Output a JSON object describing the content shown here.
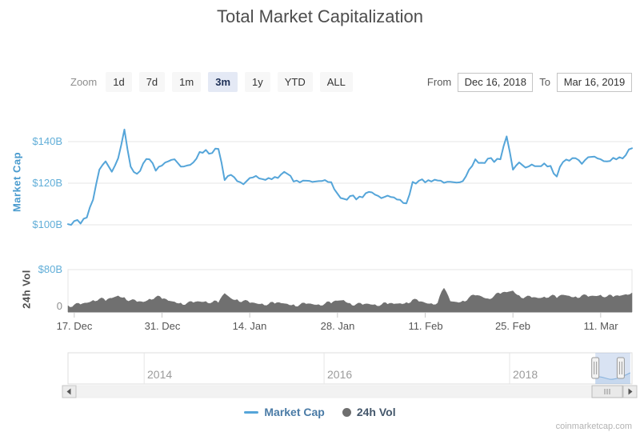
{
  "title": "Total Market Capitalization",
  "watermark": "coinmarketcap.com",
  "toolbar": {
    "zoom_label": "Zoom",
    "buttons": [
      {
        "label": "1d",
        "selected": false
      },
      {
        "label": "7d",
        "selected": false
      },
      {
        "label": "1m",
        "selected": false
      },
      {
        "label": "3m",
        "selected": true
      },
      {
        "label": "1y",
        "selected": false
      },
      {
        "label": "YTD",
        "selected": false
      },
      {
        "label": "ALL",
        "selected": false
      }
    ],
    "from_label": "From",
    "from_value": "Dec 16, 2018",
    "to_label": "To",
    "to_value": "Mar 16, 2019"
  },
  "legend": {
    "items": [
      {
        "label": "Market Cap",
        "marker": "line",
        "color": "#55a5d9"
      },
      {
        "label": "24h Vol",
        "marker": "circle",
        "color": "#6e6e6e"
      }
    ]
  },
  "chart_data": {
    "type": "line",
    "title": "Total Market Capitalization",
    "x_range": [
      "Dec 16, 2018",
      "Mar 16, 2019"
    ],
    "x_unit": "days",
    "x_tick_labels": [
      "17. Dec",
      "31. Dec",
      "14. Jan",
      "28. Jan",
      "11. Feb",
      "25. Feb",
      "11. Mar"
    ],
    "x_tick_days": [
      1,
      15,
      29,
      43,
      57,
      71,
      85
    ],
    "days_total": 90,
    "grid": true,
    "legend_position": "bottom",
    "panes": [
      {
        "name": "Market Cap",
        "type": "line",
        "color": "#55a5d9",
        "axis_title": "Market Cap",
        "y_ticks": [
          "$100B",
          "$120B",
          "$140B"
        ],
        "y_tick_values": [
          100,
          120,
          140
        ],
        "ylim": [
          96,
          150
        ],
        "unit": "USD billions",
        "values": [
          100.3,
          101.8,
          100.6,
          103.5,
          112,
          126.5,
          130.5,
          125.5,
          132,
          145.8,
          128,
          124.5,
          129.5,
          131.5,
          126,
          128.5,
          130.5,
          131.5,
          128,
          128.5,
          130,
          135,
          136,
          134.5,
          136.5,
          121.5,
          124,
          121,
          119.5,
          122.5,
          123.5,
          122,
          122.5,
          123,
          124.2,
          124.5,
          120.8,
          120.4,
          121.2,
          120.6,
          121,
          121.5,
          120.5,
          115,
          112.5,
          113.8,
          112.2,
          113.2,
          115.8,
          114.5,
          112.8,
          114,
          113.2,
          112,
          110.3,
          120.6,
          121.2,
          120.4,
          120.8,
          121.3,
          120.2,
          120.7,
          120.3,
          121,
          126.5,
          131.5,
          129.8,
          131.8,
          130.2,
          131.5,
          142.5,
          126.5,
          130,
          127.5,
          129,
          128.2,
          129.5,
          128.3,
          123.2,
          130.2,
          130.8,
          132,
          129.3,
          132.5,
          132.8,
          131.5,
          130.5,
          132.2,
          132.5,
          133.5,
          136.8
        ]
      },
      {
        "name": "24h Vol",
        "type": "area",
        "color": "#707070",
        "axis_title": "24h Vol",
        "y_ticks": [
          "0",
          "$80B"
        ],
        "y_tick_values": [
          0,
          80
        ],
        "ylim": [
          0,
          80
        ],
        "unit": "USD billions",
        "values": [
          12,
          13.5,
          14,
          17,
          22,
          24.5,
          20.5,
          26,
          30.5,
          27.5,
          22,
          19,
          18.5,
          24.5,
          28,
          24.5,
          21,
          19,
          17,
          16.5,
          17.5,
          19.5,
          20,
          18,
          17,
          35,
          25.5,
          23.5,
          21,
          17,
          16,
          15.5,
          14.5,
          15.5,
          16.5,
          15,
          14,
          13.5,
          15,
          14.5,
          14,
          15.5,
          16,
          21,
          22,
          16.5,
          14.5,
          13.5,
          15,
          14,
          13.5,
          14.5,
          15,
          16,
          18,
          23,
          19.5,
          17,
          16,
          17,
          45,
          20,
          18.5,
          21,
          27,
          31,
          29,
          25,
          30,
          34,
          37,
          40,
          31,
          28,
          27,
          26,
          28.5,
          30,
          26,
          32,
          30,
          29,
          31,
          28.5,
          30,
          32,
          29,
          28,
          30,
          33,
          36
        ]
      }
    ],
    "navigator": {
      "year_labels": [
        "2014",
        "2016",
        "2018"
      ],
      "year_fracs": [
        0.135,
        0.454,
        0.783
      ],
      "selected_range": [
        0.935,
        0.997
      ]
    }
  }
}
